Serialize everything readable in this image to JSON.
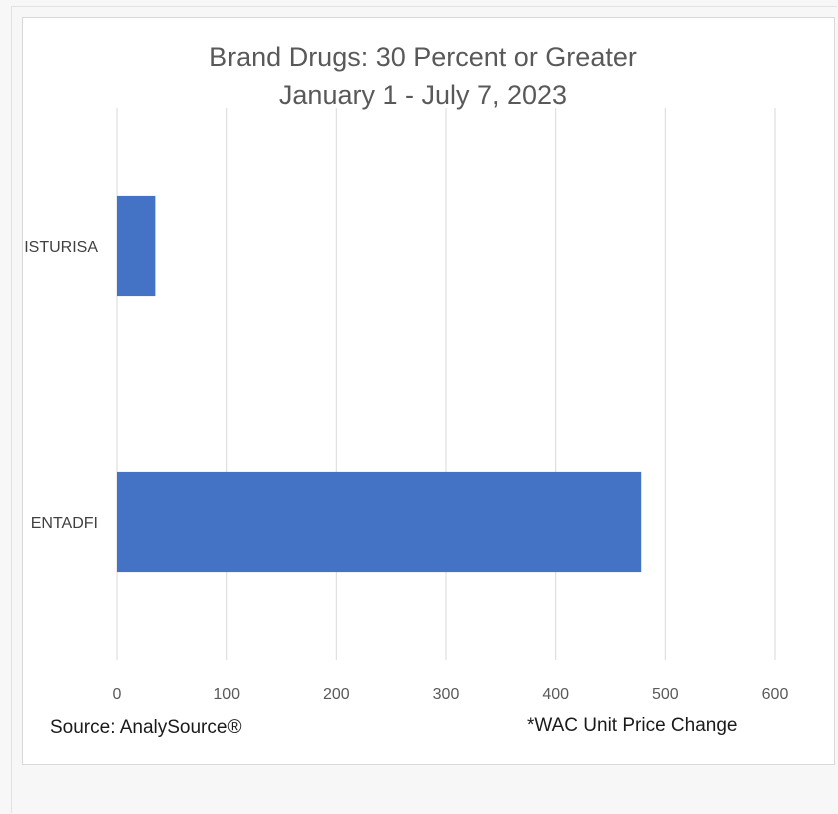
{
  "chart_data": {
    "type": "bar",
    "orientation": "horizontal",
    "title": "Brand Drugs: 30 Percent or Greater",
    "subtitle": "January 1 - July 7, 2023",
    "categories": [
      "ISTURISA",
      "ENTADFI"
    ],
    "values": [
      35,
      478
    ],
    "xlim": [
      0,
      600
    ],
    "x_ticks": [
      0,
      100,
      200,
      300,
      400,
      500,
      600
    ],
    "bar_color": "#4472C4",
    "grid": true,
    "legend": "none"
  },
  "footer": {
    "source": "Source: AnalySource®",
    "note": "*WAC Unit Price Change"
  }
}
